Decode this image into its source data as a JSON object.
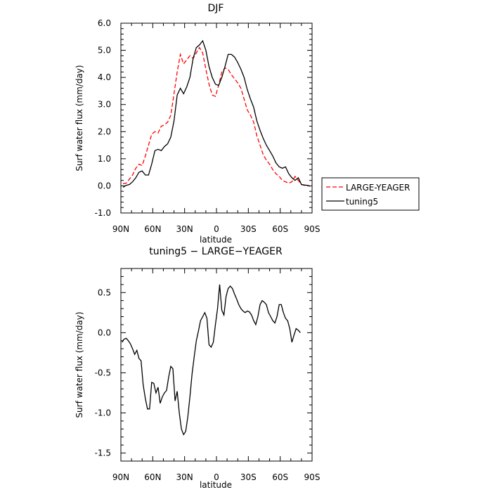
{
  "chart_data": [
    {
      "type": "line",
      "title": "DJF",
      "xlabel": "latitude",
      "ylabel": "Surf water flux (mm/day)",
      "xlim": [
        90,
        -90
      ],
      "ylim": [
        -1.0,
        6.0
      ],
      "xticks": [
        {
          "value": 90,
          "label": "90N"
        },
        {
          "value": 60,
          "label": "60N"
        },
        {
          "value": 30,
          "label": "30N"
        },
        {
          "value": 0,
          "label": "0"
        },
        {
          "value": -30,
          "label": "30S"
        },
        {
          "value": -60,
          "label": "60S"
        },
        {
          "value": -90,
          "label": "90S"
        }
      ],
      "yticks": [
        {
          "value": -1.0,
          "label": "-1.0"
        },
        {
          "value": 0.0,
          "label": "0.0"
        },
        {
          "value": 1.0,
          "label": "1.0"
        },
        {
          "value": 2.0,
          "label": "2.0"
        },
        {
          "value": 3.0,
          "label": "3.0"
        },
        {
          "value": 4.0,
          "label": "4.0"
        },
        {
          "value": 5.0,
          "label": "5.0"
        },
        {
          "value": 6.0,
          "label": "6.0"
        }
      ],
      "legend_position": "right, outside the plot",
      "grid": false,
      "series": [
        {
          "name": "LARGE-YEAGER",
          "color": "#ff0000",
          "dash": "dashed",
          "x": [
            88,
            85,
            82,
            79,
            76,
            73,
            70,
            67,
            64,
            61,
            58,
            55,
            52,
            49,
            46,
            43,
            40,
            37,
            34,
            31,
            28,
            25,
            22,
            19,
            16,
            13,
            10,
            7,
            4,
            1,
            -2,
            -5,
            -8,
            -11,
            -14,
            -17,
            -20,
            -23,
            -26,
            -29,
            -32,
            -35,
            -38,
            -41,
            -44,
            -47,
            -50,
            -53,
            -56,
            -59,
            -62,
            -65,
            -68,
            -71,
            -74,
            -77,
            -80,
            -83,
            -86,
            -88
          ],
          "y": [
            0.08,
            0.1,
            0.25,
            0.4,
            0.65,
            0.8,
            0.75,
            1.1,
            1.5,
            1.9,
            2.0,
            1.95,
            2.2,
            2.25,
            2.35,
            2.6,
            3.4,
            4.2,
            4.85,
            4.5,
            4.65,
            4.8,
            4.7,
            4.9,
            5.1,
            4.9,
            4.3,
            3.75,
            3.35,
            3.3,
            3.7,
            4.2,
            4.35,
            4.3,
            4.1,
            3.95,
            3.8,
            3.6,
            3.2,
            2.8,
            2.6,
            2.35,
            1.85,
            1.5,
            1.15,
            0.95,
            0.8,
            0.6,
            0.45,
            0.35,
            0.2,
            0.15,
            0.1,
            0.15,
            0.35,
            0.2,
            0.05,
            0.02,
            0.0,
            0.0
          ]
        },
        {
          "name": "tuning5",
          "color": "#000000",
          "dash": "solid",
          "x": [
            88,
            85,
            82,
            79,
            76,
            73,
            70,
            67,
            64,
            61,
            58,
            55,
            52,
            49,
            46,
            43,
            40,
            37,
            34,
            31,
            28,
            25,
            22,
            19,
            16,
            13,
            10,
            7,
            4,
            1,
            -2,
            -5,
            -8,
            -11,
            -14,
            -17,
            -20,
            -23,
            -26,
            -29,
            -32,
            -35,
            -38,
            -41,
            -44,
            -47,
            -50,
            -53,
            -56,
            -59,
            -62,
            -65,
            -68,
            -71,
            -74,
            -77,
            -80,
            -83,
            -86,
            -88
          ],
          "y": [
            -0.05,
            0.02,
            0.05,
            0.15,
            0.3,
            0.5,
            0.55,
            0.4,
            0.4,
            0.8,
            1.3,
            1.35,
            1.3,
            1.45,
            1.55,
            1.8,
            2.4,
            3.35,
            3.6,
            3.4,
            3.65,
            4.0,
            4.7,
            5.1,
            5.2,
            5.35,
            5.0,
            4.4,
            4.0,
            3.75,
            3.7,
            4.0,
            4.4,
            4.85,
            4.85,
            4.75,
            4.55,
            4.3,
            4.0,
            3.55,
            3.2,
            2.9,
            2.4,
            2.05,
            1.75,
            1.5,
            1.3,
            1.1,
            0.85,
            0.7,
            0.65,
            0.7,
            0.45,
            0.3,
            0.2,
            0.3,
            0.05,
            0.03,
            0.02,
            -0.02
          ]
        }
      ],
      "legend": [
        "LARGE-YEAGER",
        "tuning5"
      ]
    },
    {
      "type": "line",
      "title": "tuning5 − LARGE−YEAGER",
      "xlabel": "latitude",
      "ylabel": "Surf water flux (mm/day)",
      "xlim": [
        90,
        -90
      ],
      "ylim": [
        -1.6,
        0.8
      ],
      "xticks": [
        {
          "value": 90,
          "label": "90N"
        },
        {
          "value": 60,
          "label": "60N"
        },
        {
          "value": 30,
          "label": "30N"
        },
        {
          "value": 0,
          "label": "0"
        },
        {
          "value": -30,
          "label": "30S"
        },
        {
          "value": -60,
          "label": "60S"
        },
        {
          "value": -90,
          "label": "90S"
        }
      ],
      "yticks": [
        {
          "value": -1.5,
          "label": "-1.5"
        },
        {
          "value": -1.0,
          "label": "-1.0"
        },
        {
          "value": -0.5,
          "label": "-0.5"
        },
        {
          "value": 0.0,
          "label": "0.0"
        },
        {
          "value": 0.5,
          "label": "0.5"
        }
      ],
      "grid": false,
      "series": [
        {
          "color": "#000000",
          "dash": "solid",
          "x": [
            89,
            87,
            85,
            83,
            81,
            79,
            77,
            75,
            73,
            71,
            69,
            67,
            65,
            63,
            61,
            59,
            57,
            55,
            53,
            51,
            49,
            47,
            45,
            43,
            41,
            39,
            37,
            35,
            33,
            31,
            29,
            27,
            25,
            23,
            21,
            19,
            17,
            15,
            13,
            11,
            9,
            7,
            5,
            3,
            1,
            -1,
            -3,
            -5,
            -7,
            -9,
            -11,
            -13,
            -15,
            -17,
            -19,
            -21,
            -23,
            -25,
            -27,
            -29,
            -31,
            -33,
            -35,
            -37,
            -39,
            -41,
            -43,
            -45,
            -47,
            -49,
            -51,
            -53,
            -55,
            -57,
            -59,
            -61,
            -63,
            -65,
            -67,
            -69,
            -71,
            -73,
            -75,
            -77,
            -79
          ],
          "y": [
            -0.12,
            -0.08,
            -0.07,
            -0.1,
            -0.14,
            -0.2,
            -0.27,
            -0.22,
            -0.32,
            -0.35,
            -0.65,
            -0.82,
            -0.95,
            -0.95,
            -0.62,
            -0.63,
            -0.75,
            -0.68,
            -0.88,
            -0.8,
            -0.75,
            -0.72,
            -0.55,
            -0.42,
            -0.45,
            -0.85,
            -0.73,
            -1.0,
            -1.2,
            -1.27,
            -1.23,
            -1.05,
            -0.8,
            -0.52,
            -0.3,
            -0.1,
            0.02,
            0.15,
            0.2,
            0.25,
            0.18,
            -0.15,
            -0.18,
            -0.12,
            0.1,
            0.3,
            0.6,
            0.28,
            0.22,
            0.45,
            0.55,
            0.58,
            0.55,
            0.48,
            0.42,
            0.35,
            0.3,
            0.27,
            0.25,
            0.27,
            0.26,
            0.22,
            0.15,
            0.1,
            0.2,
            0.35,
            0.4,
            0.38,
            0.35,
            0.25,
            0.2,
            0.15,
            0.12,
            0.2,
            0.35,
            0.35,
            0.25,
            0.18,
            0.15,
            0.05,
            -0.12,
            -0.03,
            0.05,
            0.03,
            0.0
          ]
        }
      ]
    }
  ]
}
